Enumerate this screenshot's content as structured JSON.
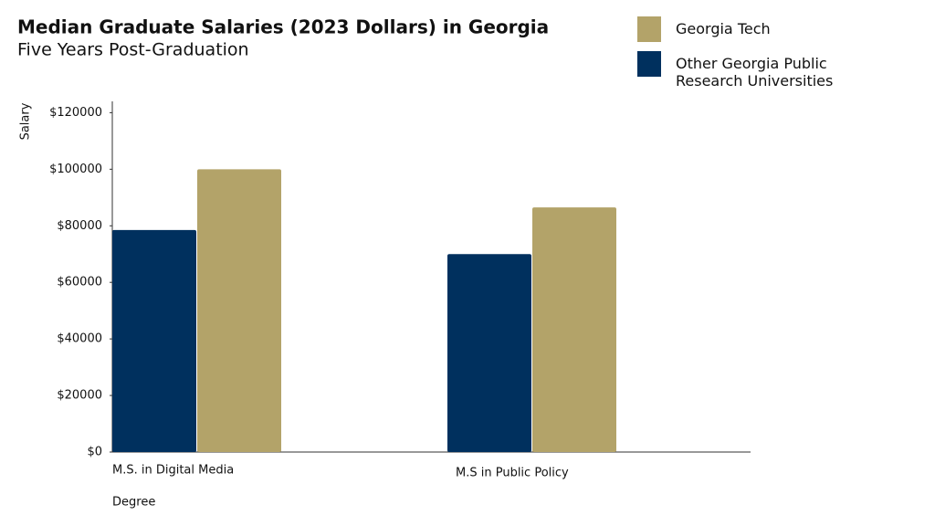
{
  "chart_data": {
    "type": "grouped-bar",
    "title": "Median Graduate Salaries (2023 Dollars) in Georgia",
    "subtitle": "Five Years Post-Graduation",
    "y_label": "Salary",
    "x_label": "Degree",
    "categories": [
      "M.S. in Digital Media",
      "M.S in Public Policy"
    ],
    "series": [
      {
        "name": "Other Georgia Public Research Universities",
        "color": "#00305e",
        "values": [
          78500,
          70000
        ]
      },
      {
        "name": "Georgia Tech",
        "color": "#b3a369",
        "values": [
          100000,
          86500
        ]
      }
    ],
    "legend_order": [
      1,
      0
    ],
    "ylim": [
      0,
      124000
    ],
    "yticks": [
      {
        "value": 0,
        "label": "$0"
      },
      {
        "value": 20000,
        "label": "$20000"
      },
      {
        "value": 40000,
        "label": "$40000"
      },
      {
        "value": 60000,
        "label": "$60000"
      },
      {
        "value": 80000,
        "label": "$80000"
      },
      {
        "value": 100000,
        "label": "$100000"
      },
      {
        "value": 120000,
        "label": "$120000"
      }
    ],
    "grid": false
  }
}
